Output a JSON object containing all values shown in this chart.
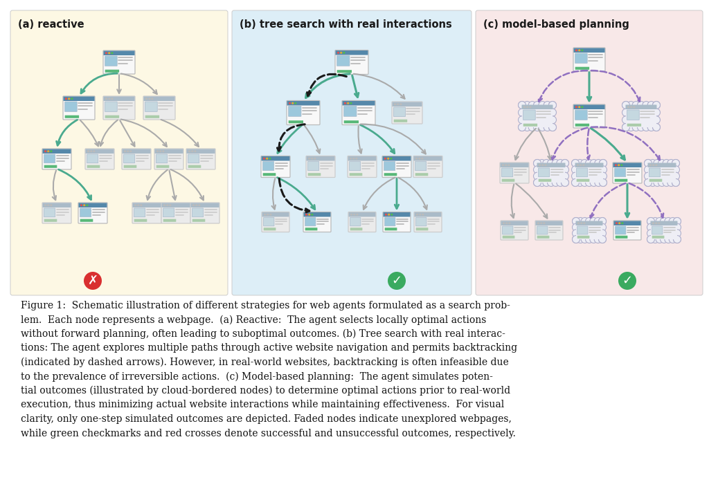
{
  "panel_a_title": "(a) reactive",
  "panel_b_title": "(b) tree search with real interactions",
  "panel_c_title": "(c) model-based planning",
  "panel_a_bg": "#fdf8e4",
  "panel_b_bg": "#ddeef7",
  "panel_c_bg": "#f8e8e8",
  "caption_lines": [
    "Figure 1:  Schematic illustration of different strategies for web agents formulated as a search prob-",
    "lem.  Each node represents a webpage.  (a) Reactive:  The agent selects locally optimal actions",
    "without forward planning, often leading to suboptimal outcomes. (b) Tree search with real interac-",
    "tions: The agent explores multiple paths through active website navigation and permits backtracking",
    "(indicated by dashed arrows). However, in real-world websites, backtracking is often infeasible due",
    "to the prevalence of irreversible actions.  (c) Model-based planning:  The agent simulates poten-",
    "tial outcomes (illustrated by cloud-bordered nodes) to determine optimal actions prior to real-world",
    "execution, thus minimizing actual website interactions while maintaining effectiveness.  For visual",
    "clarity, only one-step simulated outcomes are depicted. Faded nodes indicate unexplored webpages,",
    "while green checkmarks and red crosses denote successful and unsuccessful outcomes, respectively."
  ],
  "green_arrow": "#4aaa8e",
  "gray_arrow": "#aaaaaa",
  "black_dashed": "#1a1a1a",
  "purple_dashed": "#9070c0",
  "red_cross_color": "#d93030",
  "green_check_color": "#3aaa60"
}
